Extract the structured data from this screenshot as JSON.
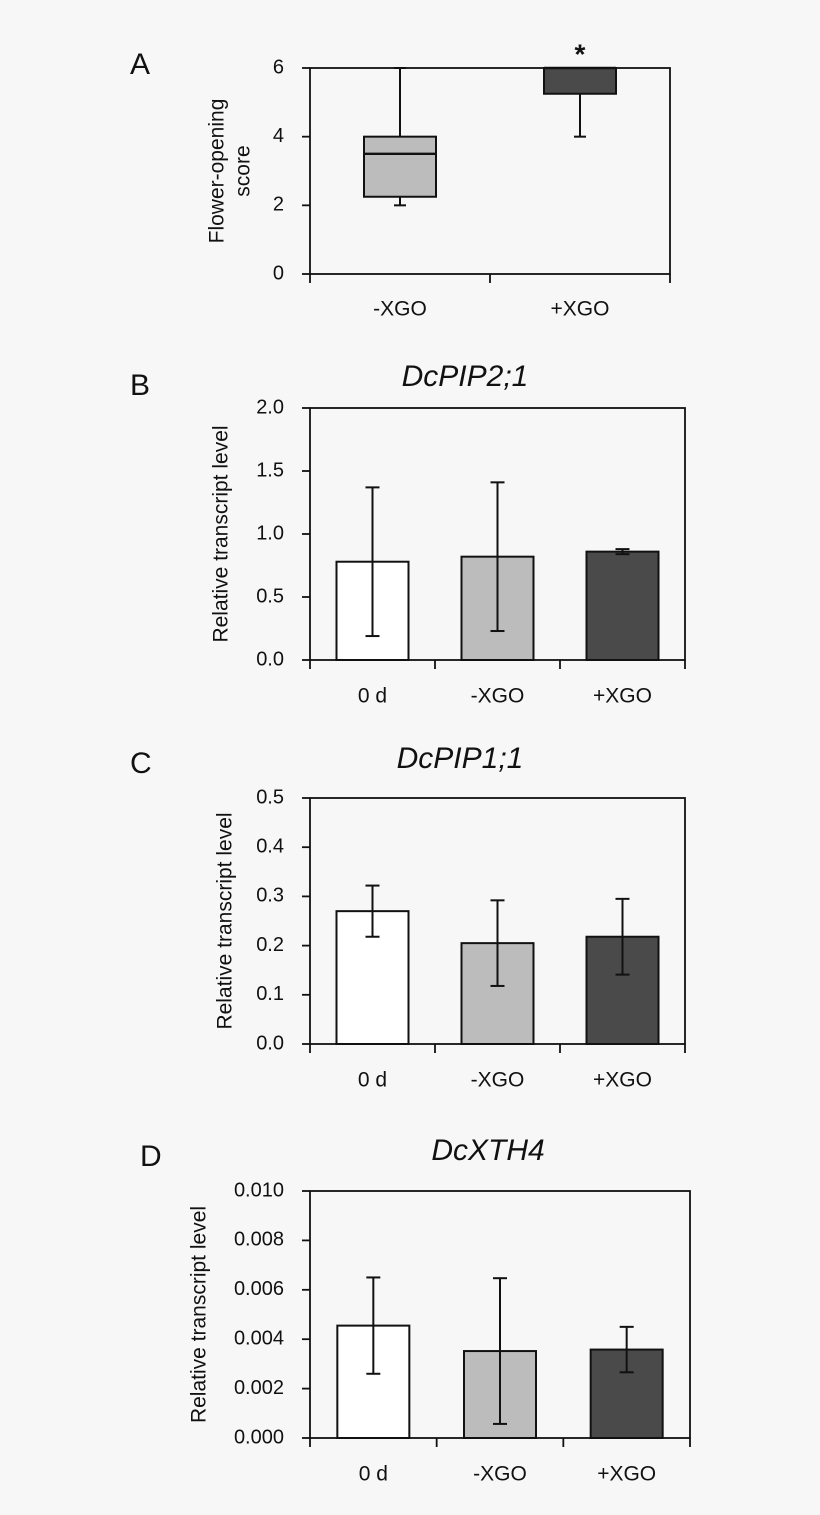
{
  "colors": {
    "background": "#f7f7f7",
    "white_bar": "#ffffff",
    "gray_bar": "#bcbcbc",
    "dark_bar": "#4a4a4a",
    "stroke": "#111111"
  },
  "chart_data": [
    {
      "panel": "A",
      "type": "box",
      "title": "",
      "ylabel": [
        "Flower-opening",
        "score"
      ],
      "ylim": [
        0,
        6
      ],
      "yticks": [
        "0",
        "2",
        "4",
        "6"
      ],
      "categories": [
        "-XGO",
        "+XGO"
      ],
      "boxes": [
        {
          "category": "-XGO",
          "min": 2,
          "q1": 2.25,
          "median": 3.5,
          "q3": 4,
          "max": 6,
          "fill": "gray",
          "mark": ""
        },
        {
          "category": "+XGO",
          "min": 4,
          "q1": 5.25,
          "median": 6,
          "q3": 6,
          "max": 6,
          "fill": "dark",
          "mark": "*"
        }
      ]
    },
    {
      "panel": "B",
      "type": "bar",
      "title": "DcPIP2;1",
      "ylabel": "Relative transcript level",
      "ylim": [
        0,
        2.0
      ],
      "yticks": [
        "0.0",
        "0.5",
        "1.0",
        "1.5",
        "2.0"
      ],
      "categories": [
        "0 d",
        "-XGO",
        "+XGO"
      ],
      "values": [
        0.78,
        0.82,
        0.86
      ],
      "errors": [
        0.59,
        0.59,
        0.02
      ],
      "fills": [
        "white",
        "gray",
        "dark"
      ]
    },
    {
      "panel": "C",
      "type": "bar",
      "title": "DcPIP1;1",
      "ylabel": "Relative transcript level",
      "ylim": [
        0,
        0.5
      ],
      "yticks": [
        "0.0",
        "0.1",
        "0.2",
        "0.3",
        "0.4",
        "0.5"
      ],
      "categories": [
        "0 d",
        "-XGO",
        "+XGO"
      ],
      "values": [
        0.27,
        0.205,
        0.218
      ],
      "errors": [
        0.052,
        0.087,
        0.077
      ],
      "fills": [
        "white",
        "gray",
        "dark"
      ]
    },
    {
      "panel": "D",
      "type": "bar",
      "title": "DcXTH4",
      "ylabel": "Relative transcript level",
      "ylim": [
        0,
        0.01
      ],
      "yticks": [
        "0.000",
        "0.002",
        "0.004",
        "0.006",
        "0.008",
        "0.010"
      ],
      "categories": [
        "0 d",
        "-XGO",
        "+XGO"
      ],
      "values": [
        0.00455,
        0.00352,
        0.00358
      ],
      "errors": [
        0.00195,
        0.00295,
        0.00092
      ],
      "fills": [
        "white",
        "gray",
        "dark"
      ]
    }
  ]
}
